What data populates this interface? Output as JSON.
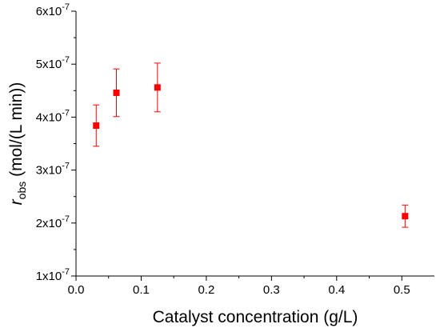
{
  "chart_data": {
    "type": "scatter",
    "xlabel": "Catalyst concentration (g/L)",
    "ylabel": {
      "main": "r",
      "sub": "obs",
      "rest": " (mol/(L min))"
    },
    "xlim": [
      0.0,
      0.55
    ],
    "ylim": [
      1e-07,
      6e-07
    ],
    "x_ticks": [
      {
        "value": 0.0,
        "label": "0.0"
      },
      {
        "value": 0.1,
        "label": "0.1"
      },
      {
        "value": 0.2,
        "label": "0.2"
      },
      {
        "value": 0.3,
        "label": "0.3"
      },
      {
        "value": 0.4,
        "label": "0.4"
      },
      {
        "value": 0.5,
        "label": "0.5"
      }
    ],
    "y_ticks": [
      {
        "value": 1e-07,
        "mant": "1x10",
        "exp": "-7"
      },
      {
        "value": 2e-07,
        "mant": "2x10",
        "exp": "-7"
      },
      {
        "value": 3e-07,
        "mant": "3x10",
        "exp": "-7"
      },
      {
        "value": 4e-07,
        "mant": "4x10",
        "exp": "-7"
      },
      {
        "value": 5e-07,
        "mant": "5x10",
        "exp": "-7"
      },
      {
        "value": 6e-07,
        "mant": "6x10",
        "exp": "-7"
      }
    ],
    "marker_color": "#ff0000",
    "points": [
      {
        "x": 0.031,
        "y": 3.84e-07,
        "err": 3.9e-08
      },
      {
        "x": 0.062,
        "y": 4.46e-07,
        "err": 4.5e-08
      },
      {
        "x": 0.125,
        "y": 4.56e-07,
        "err": 4.6e-08
      },
      {
        "x": 0.505,
        "y": 2.13e-07,
        "err": 2.1e-08
      }
    ],
    "grid": false,
    "legend": "none"
  }
}
